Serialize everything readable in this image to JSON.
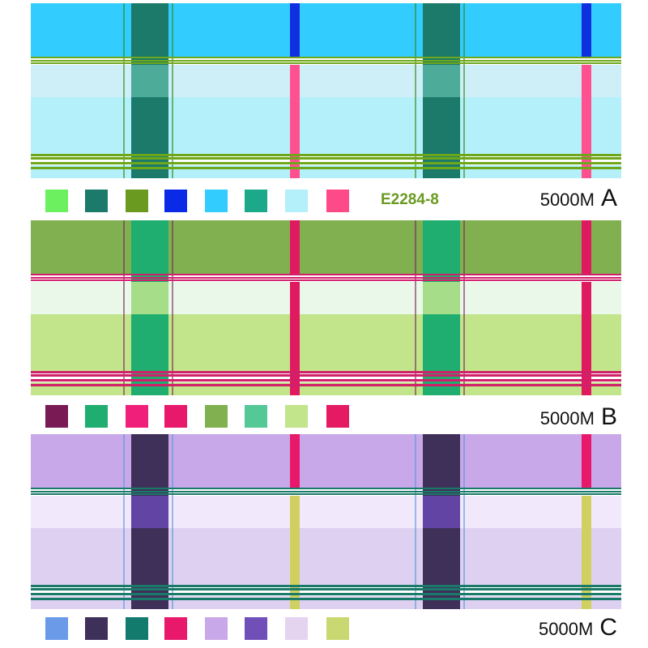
{
  "panels": [
    {
      "id": "A",
      "scale_label": "5000M",
      "letter": "A",
      "code": "E2284-8",
      "code_color": "#6a9a1f",
      "colors": {
        "top": "#33ccff",
        "light": "#cfeff8",
        "mid": "#b3f0fa",
        "wide": "#1b7a6a",
        "wide_light": "#5ab8a5",
        "narrow": "#1030e0",
        "narrow_light": "#ff5090",
        "lines": "#6ea81a",
        "lines2": "#2e8a1a"
      },
      "swatches": [
        "#6cf060",
        "#1b7a6a",
        "#6a9a1f",
        "#0a2ae8",
        "#33ccff",
        "#1ba98a",
        "#b3f0fa",
        "#ff4a8a"
      ]
    },
    {
      "id": "B",
      "scale_label": "5000M",
      "letter": "B",
      "code": "",
      "code_color": "#000000",
      "colors": {
        "top": "#80b050",
        "light": "#eaf8ea",
        "mid": "#c2e48a",
        "wide": "#1fad70",
        "wide_light": "#c8e890",
        "narrow": "#e01a60",
        "narrow_light": "#e01a60",
        "lines": "#d0206a",
        "lines2": "#7a2a5a"
      },
      "swatches": [
        "#7a1a55",
        "#1fad70",
        "#f0207a",
        "#e8186a",
        "#80b050",
        "#55c898",
        "#c2e48a",
        "#e41a62"
      ]
    },
    {
      "id": "C",
      "scale_label": "5000M",
      "letter": "C",
      "code": "",
      "code_color": "#000000",
      "colors": {
        "top": "#c8a8e8",
        "light": "#f2e8fb",
        "mid": "#ddd0f0",
        "wide": "#3e3058",
        "wide_light": "#6a4ab8",
        "narrow": "#e8186a",
        "narrow_light": "#d0d060",
        "lines": "#1a7a6a",
        "lines2": "#5a9ad8"
      },
      "swatches": [
        "#6a9ae8",
        "#3e3058",
        "#137a6e",
        "#e8186a",
        "#c8a8e8",
        "#7050b8",
        "#e4d4f0",
        "#cad872"
      ]
    }
  ]
}
